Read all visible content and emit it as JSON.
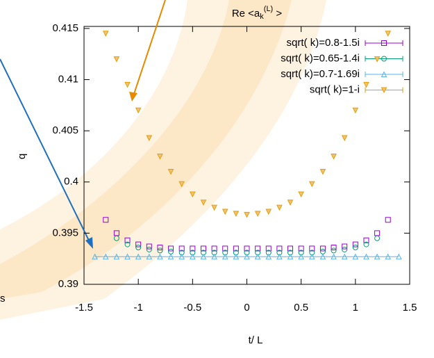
{
  "chart_data": {
    "type": "scatter",
    "title": {
      "text": "Re <a",
      "sub": "k",
      "sup": "(L)",
      "end": " >"
    },
    "xlabel": "t/ L",
    "ylabel": "q",
    "side_note": "s",
    "xlim": [
      -1.5,
      1.5
    ],
    "ylim": [
      0.39,
      0.4152
    ],
    "xticks": [
      -1.5,
      -1,
      -0.5,
      0,
      0.5,
      1,
      1.5
    ],
    "yticks": [
      0.39,
      0.395,
      0.4,
      0.405,
      0.41,
      0.415
    ],
    "legend": "top-right",
    "series": [
      {
        "name": "sqrt( k)=0.8-1.5i",
        "color": "#9400d3",
        "marker": "square",
        "x": [
          -1.3,
          -1.2,
          -1.1,
          -1.0,
          -0.9,
          -0.8,
          -0.7,
          -0.6,
          -0.5,
          -0.4,
          -0.3,
          -0.2,
          -0.1,
          0,
          0.1,
          0.2,
          0.3,
          0.4,
          0.5,
          0.6,
          0.7,
          0.8,
          0.9,
          1.0,
          1.1,
          1.2,
          1.3
        ],
        "values": [
          0.3963,
          0.395,
          0.3943,
          0.3939,
          0.3937,
          0.3936,
          0.3935,
          0.3935,
          0.3935,
          0.3935,
          0.3935,
          0.3935,
          0.3935,
          0.3935,
          0.3935,
          0.3935,
          0.3935,
          0.3935,
          0.3935,
          0.3935,
          0.3935,
          0.3936,
          0.3937,
          0.3939,
          0.3943,
          0.395,
          0.3963
        ]
      },
      {
        "name": "sqrt( k)=0.65-1.4i",
        "color": "#009e73",
        "marker": "circle",
        "x": [
          -1.2,
          -1.1,
          -1.0,
          -0.9,
          -0.8,
          -0.7,
          -0.6,
          -0.5,
          -0.4,
          -0.3,
          -0.2,
          -0.1,
          0,
          0.1,
          0.2,
          0.3,
          0.4,
          0.5,
          0.6,
          0.7,
          0.8,
          0.9,
          1.0,
          1.1,
          1.2
        ],
        "values": [
          0.3945,
          0.3939,
          0.3936,
          0.3934,
          0.3933,
          0.3932,
          0.3931,
          0.3931,
          0.3931,
          0.3931,
          0.3931,
          0.3931,
          0.3931,
          0.3931,
          0.3931,
          0.3931,
          0.3931,
          0.3931,
          0.3931,
          0.3932,
          0.3933,
          0.3934,
          0.3936,
          0.3939,
          0.3945
        ]
      },
      {
        "name": "sqrt( k)=0.7-1.69i",
        "color": "#56b4e9",
        "marker": "triangle",
        "x": [
          -1.4,
          -1.3,
          -1.2,
          -1.1,
          -1.0,
          -0.9,
          -0.8,
          -0.7,
          -0.6,
          -0.5,
          -0.4,
          -0.3,
          -0.2,
          -0.1,
          0,
          0.1,
          0.2,
          0.3,
          0.4,
          0.5,
          0.6,
          0.7,
          0.8,
          0.9,
          1.0,
          1.1,
          1.2,
          1.3,
          1.4
        ],
        "values": [
          0.3927,
          0.3927,
          0.3927,
          0.3927,
          0.3927,
          0.3927,
          0.3927,
          0.3927,
          0.3927,
          0.3927,
          0.3927,
          0.3927,
          0.3927,
          0.3927,
          0.3927,
          0.3927,
          0.3927,
          0.3927,
          0.3927,
          0.3927,
          0.3927,
          0.3927,
          0.3927,
          0.3927,
          0.3927,
          0.3927,
          0.3927,
          0.3927,
          0.3927
        ]
      },
      {
        "name": "sqrt( k)=1-i",
        "color": "#e69f00",
        "marker": "down-triangle",
        "x": [
          -1.3,
          -1.2,
          -1.1,
          -1.0,
          -0.9,
          -0.8,
          -0.7,
          -0.6,
          -0.5,
          -0.4,
          -0.3,
          -0.2,
          -0.1,
          0,
          0.1,
          0.2,
          0.3,
          0.4,
          0.5,
          0.6,
          0.7,
          0.8,
          0.9,
          1.0,
          1.1,
          1.2,
          1.3
        ],
        "values": [
          0.4145,
          0.412,
          0.4095,
          0.407,
          0.4043,
          0.4025,
          0.401,
          0.3998,
          0.3988,
          0.398,
          0.3975,
          0.3971,
          0.3969,
          0.3968,
          0.3969,
          0.3971,
          0.3975,
          0.398,
          0.3988,
          0.3998,
          0.401,
          0.4025,
          0.4043,
          0.407,
          0.4095,
          0.412,
          0.4145
        ]
      }
    ]
  }
}
